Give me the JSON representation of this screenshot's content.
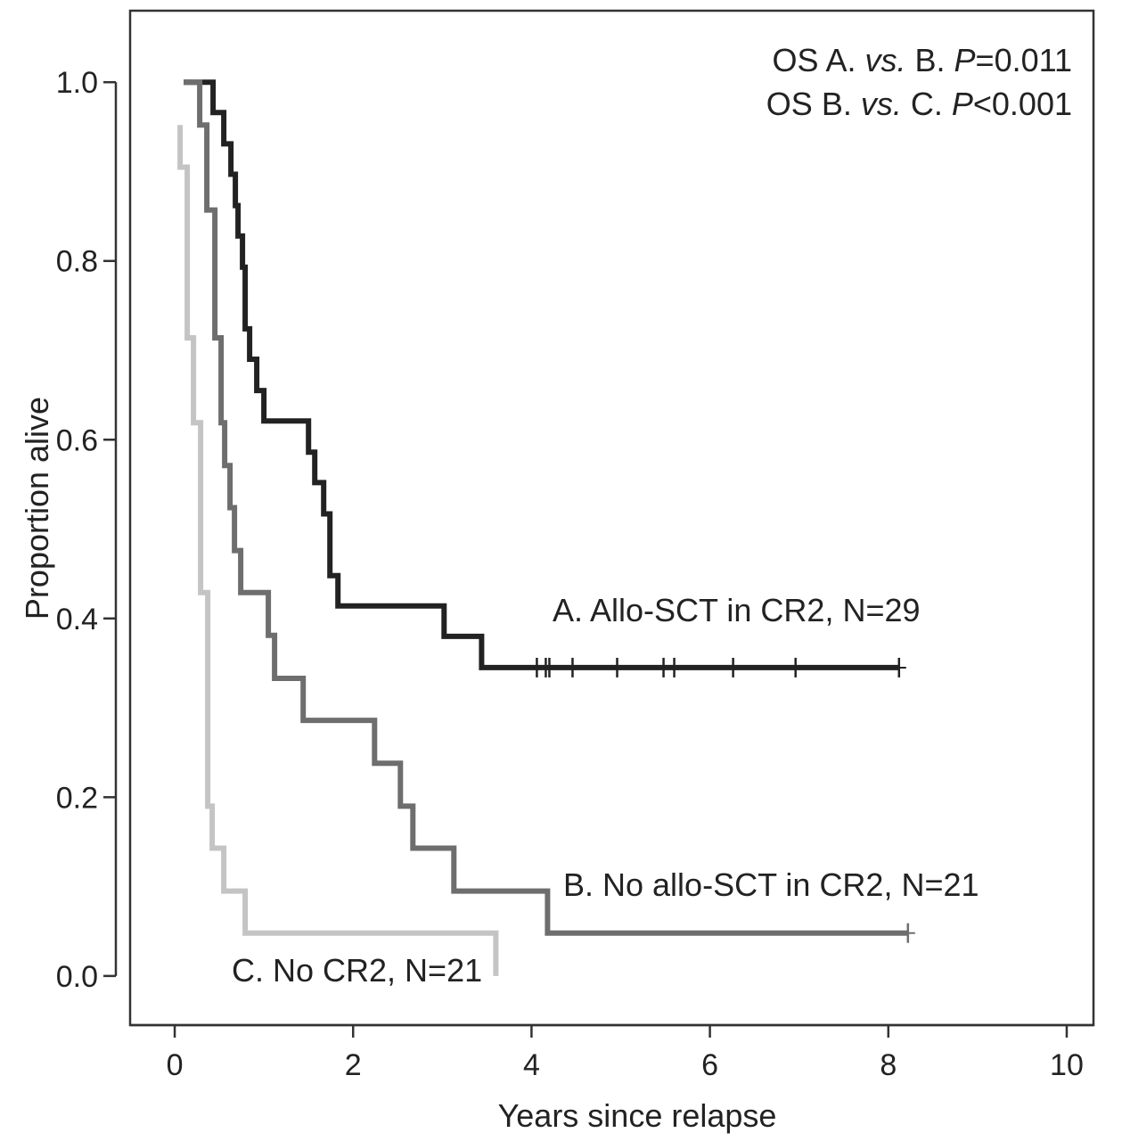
{
  "chart_data": {
    "type": "line",
    "subtype": "kaplan-meier",
    "title": "",
    "xlabel": "Years since relapse",
    "ylabel": "Proportion alive",
    "xlim": [
      -0.5,
      10.3
    ],
    "ylim": [
      -0.055,
      1.08
    ],
    "x_ticks": [
      0,
      2,
      4,
      6,
      8,
      10
    ],
    "x_tick_labels": [
      "0",
      "2",
      "4",
      "6",
      "8",
      "10"
    ],
    "y_ticks": [
      0.0,
      0.2,
      0.4,
      0.6,
      0.8,
      1.0
    ],
    "y_tick_labels": [
      "0.0",
      "0.2",
      "0.4",
      "0.6",
      "0.8",
      "1.0"
    ],
    "grid": false,
    "annotations": {
      "line1": {
        "prefix": "OS A. ",
        "italic": "vs.",
        "middle": " B. ",
        "p": "P",
        "suffix": "=0.011"
      },
      "line2": {
        "prefix": "OS B. ",
        "italic": "vs.",
        "middle": " C. ",
        "p": "P",
        "suffix": "<0.001"
      }
    },
    "series": [
      {
        "name": "A. Allo-SCT in CR2, N=29",
        "color": "#222222",
        "x": [
          0.1,
          0.43,
          0.43,
          0.55,
          0.55,
          0.63,
          0.63,
          0.68,
          0.68,
          0.71,
          0.71,
          0.76,
          0.76,
          0.79,
          0.79,
          0.84,
          0.84,
          0.92,
          0.92,
          1.0,
          1.0,
          1.5,
          1.5,
          1.57,
          1.57,
          1.67,
          1.67,
          1.74,
          1.74,
          1.83,
          1.83,
          3.02,
          3.02,
          3.44,
          3.44,
          8.12
        ],
        "y": [
          1.0,
          1.0,
          0.966,
          0.966,
          0.931,
          0.931,
          0.897,
          0.897,
          0.862,
          0.862,
          0.828,
          0.828,
          0.793,
          0.793,
          0.724,
          0.724,
          0.69,
          0.69,
          0.655,
          0.655,
          0.621,
          0.621,
          0.586,
          0.586,
          0.552,
          0.552,
          0.517,
          0.517,
          0.448,
          0.448,
          0.414,
          0.414,
          0.38,
          0.38,
          0.345,
          0.345
        ],
        "censor_x": [
          4.06,
          4.16,
          4.2,
          4.46,
          4.96,
          5.48,
          5.6,
          6.26,
          6.96,
          8.12
        ]
      },
      {
        "name": "B. No allo-SCT in CR2, N=21",
        "color": "#6e6e6e",
        "x": [
          0.1,
          0.28,
          0.28,
          0.36,
          0.36,
          0.45,
          0.45,
          0.52,
          0.52,
          0.56,
          0.56,
          0.62,
          0.62,
          0.67,
          0.67,
          0.74,
          0.74,
          1.05,
          1.05,
          1.12,
          1.12,
          1.44,
          1.44,
          2.24,
          2.24,
          2.53,
          2.53,
          2.67,
          2.67,
          3.13,
          3.13,
          4.18,
          4.18,
          8.22
        ],
        "y": [
          1.0,
          1.0,
          0.952,
          0.952,
          0.857,
          0.857,
          0.714,
          0.714,
          0.619,
          0.619,
          0.571,
          0.571,
          0.524,
          0.524,
          0.476,
          0.476,
          0.429,
          0.429,
          0.381,
          0.381,
          0.333,
          0.333,
          0.286,
          0.286,
          0.238,
          0.238,
          0.19,
          0.19,
          0.143,
          0.143,
          0.095,
          0.095,
          0.048,
          0.048
        ],
        "censor_x": [
          8.22
        ]
      },
      {
        "name": "C. No CR2, N=21",
        "color": "#c4c4c4",
        "x": [
          0.06,
          0.06,
          0.14,
          0.14,
          0.21,
          0.21,
          0.29,
          0.29,
          0.37,
          0.37,
          0.42,
          0.42,
          0.55,
          0.55,
          0.65,
          0.65,
          0.79,
          0.79,
          3.6,
          3.6
        ],
        "y": [
          0.952,
          0.905,
          0.905,
          0.714,
          0.714,
          0.619,
          0.619,
          0.429,
          0.429,
          0.19,
          0.19,
          0.143,
          0.143,
          0.095,
          0.095,
          0.095,
          0.095,
          0.048,
          0.048,
          0.0
        ],
        "censor_x": []
      }
    ]
  }
}
